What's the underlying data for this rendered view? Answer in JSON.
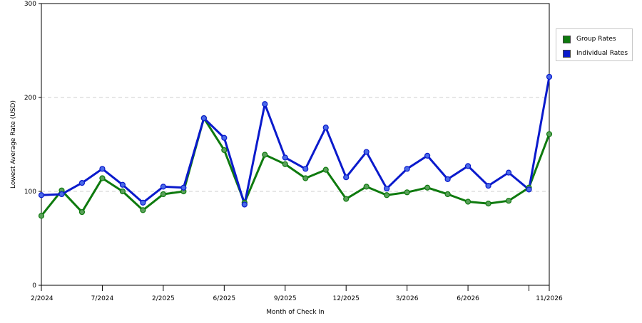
{
  "chart_data": {
    "type": "line",
    "xlabel": "Month of Check In",
    "ylabel": "Lowest Average Rate (USD)",
    "ylim": [
      0,
      300
    ],
    "yticks": [
      "0",
      "100",
      "200",
      "300"
    ],
    "xtick_labels": [
      "2/2024",
      "7/2024",
      "2/2025",
      "6/2025",
      "9/2025",
      "12/2025",
      "3/2026",
      "6/2026",
      "11/2026"
    ],
    "grid": "horizontal dashed",
    "legend_position": "right",
    "series": [
      {
        "name": "Group Rates",
        "color": "#0e7a0e",
        "values": [
          74,
          101,
          78,
          114,
          100,
          80,
          97,
          100,
          178,
          144,
          88,
          139,
          129,
          114,
          123,
          92,
          105,
          96,
          99,
          104,
          97,
          89,
          87,
          90,
          104,
          161
        ]
      },
      {
        "name": "Individual Rates",
        "color": "#0a1acc",
        "values": [
          96,
          97,
          109,
          124,
          107,
          88,
          105,
          104,
          178,
          157,
          86,
          193,
          136,
          124,
          168,
          115,
          142,
          103,
          124,
          138,
          113,
          127,
          106,
          120,
          102,
          222
        ]
      }
    ]
  }
}
